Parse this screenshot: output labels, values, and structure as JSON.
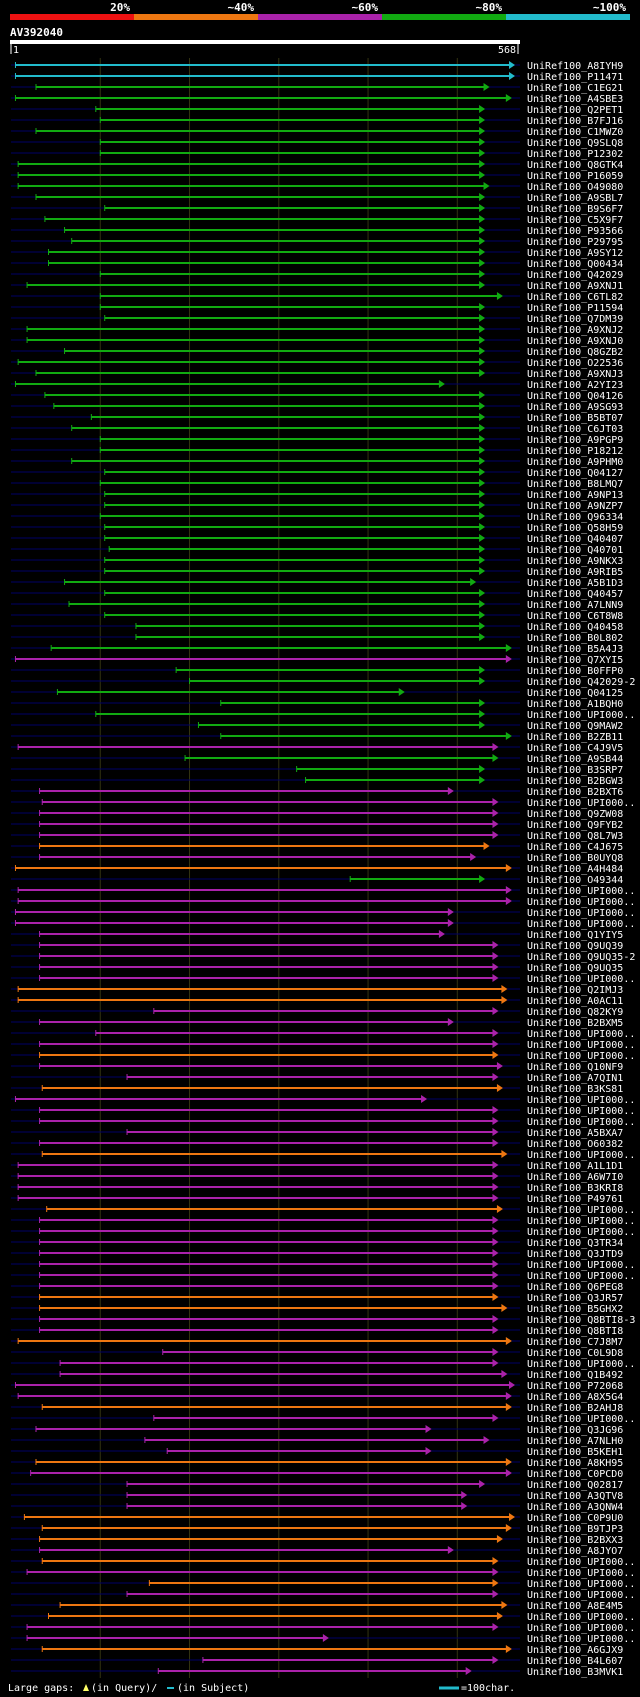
{
  "chart_data": {
    "type": "alignment-map",
    "title": "AV392040",
    "query_start": "1",
    "query_end": "568",
    "scale": {
      "labels": [
        "20%",
        "~40%",
        "~60%",
        "~80%",
        "~100%"
      ],
      "colors": [
        "#ee1111",
        "#ee7711",
        "#aa22aa",
        "#11aa11",
        "#22bbcc"
      ]
    },
    "footer": {
      "gap_label": "Large gaps:",
      "query_label": "(in Query)/",
      "subject_label": "(in Subject)",
      "scale_label": "=100char."
    },
    "hits": [
      {
        "id": "UniRef100_A8IYH9",
        "s": 5,
        "e": 565,
        "c": "#22bbcc",
        "g": []
      },
      {
        "id": "UniRef100_P11471",
        "s": 5,
        "e": 565,
        "c": "#22bbcc",
        "g": []
      },
      {
        "id": "UniRef100_C1EG21",
        "s": 28,
        "e": 535,
        "c": "#11aa11",
        "g": []
      },
      {
        "id": "UniRef100_A4SBE3",
        "s": 5,
        "e": 560,
        "c": "#11aa11",
        "g": []
      },
      {
        "id": "UniRef100_Q2PET1",
        "s": 95,
        "e": 530,
        "c": "#11aa11",
        "g": []
      },
      {
        "id": "UniRef100_B7FJ16",
        "s": 100,
        "e": 530,
        "c": "#11aa11",
        "g": []
      },
      {
        "id": "UniRef100_C1MWZ0",
        "s": 28,
        "e": 530,
        "c": "#11aa11",
        "g": []
      },
      {
        "id": "UniRef100_Q9SLQ8",
        "s": 100,
        "e": 530,
        "c": "#11aa11",
        "g": []
      },
      {
        "id": "UniRef100_P12302",
        "s": 100,
        "e": 530,
        "c": "#11aa11",
        "g": []
      },
      {
        "id": "UniRef100_Q8GTK4",
        "s": 8,
        "e": 530,
        "c": "#11aa11",
        "g": []
      },
      {
        "id": "UniRef100_P16059",
        "s": 8,
        "e": 530,
        "c": "#11aa11",
        "g": []
      },
      {
        "id": "UniRef100_O49080",
        "s": 8,
        "e": 535,
        "c": "#11aa11",
        "g": []
      },
      {
        "id": "UniRef100_A9SBL7",
        "s": 28,
        "e": 530,
        "c": "#11aa11",
        "g": []
      },
      {
        "id": "UniRef100_B9S6F7",
        "s": 105,
        "e": 530,
        "c": "#11aa11",
        "g": []
      },
      {
        "id": "UniRef100_C5X9F7",
        "s": 38,
        "e": 530,
        "c": "#11aa11",
        "g": []
      },
      {
        "id": "UniRef100_P93566",
        "s": 60,
        "e": 530,
        "c": "#11aa11",
        "g": []
      },
      {
        "id": "UniRef100_P29795",
        "s": 68,
        "e": 530,
        "c": "#11aa11",
        "g": []
      },
      {
        "id": "UniRef100_A9SY12",
        "s": 42,
        "e": 530,
        "c": "#11aa11",
        "g": []
      },
      {
        "id": "UniRef100_Q00434",
        "s": 42,
        "e": 530,
        "c": "#11aa11",
        "g": []
      },
      {
        "id": "UniRef100_Q42029",
        "s": 100,
        "e": 530,
        "c": "#11aa11",
        "g": []
      },
      {
        "id": "UniRef100_A9XNJ1",
        "s": 18,
        "e": 530,
        "c": "#11aa11",
        "g": []
      },
      {
        "id": "UniRef100_C6TL82",
        "s": 100,
        "e": 550,
        "c": "#11aa11",
        "g": []
      },
      {
        "id": "UniRef100_P11594",
        "s": 100,
        "e": 530,
        "c": "#11aa11",
        "g": []
      },
      {
        "id": "UniRef100_Q7DM39",
        "s": 105,
        "e": 530,
        "c": "#11aa11",
        "g": []
      },
      {
        "id": "UniRef100_A9XNJ2",
        "s": 18,
        "e": 530,
        "c": "#11aa11",
        "g": []
      },
      {
        "id": "UniRef100_A9XNJ0",
        "s": 18,
        "e": 530,
        "c": "#11aa11",
        "g": []
      },
      {
        "id": "UniRef100_Q8GZB2",
        "s": 60,
        "e": 530,
        "c": "#11aa11",
        "g": []
      },
      {
        "id": "UniRef100_O22536",
        "s": 8,
        "e": 530,
        "c": "#11aa11",
        "g": []
      },
      {
        "id": "UniRef100_A9XNJ3",
        "s": 28,
        "e": 530,
        "c": "#11aa11",
        "g": []
      },
      {
        "id": "UniRef100_A2YI23",
        "s": 5,
        "e": 485,
        "c": "#11aa11",
        "g": []
      },
      {
        "id": "UniRef100_Q04126",
        "s": 38,
        "e": 530,
        "c": "#11aa11",
        "g": []
      },
      {
        "id": "UniRef100_A9SG93",
        "s": 48,
        "e": 530,
        "c": "#11aa11",
        "g": []
      },
      {
        "id": "UniRef100_B5BT07",
        "s": 90,
        "e": 530,
        "c": "#11aa11",
        "g": []
      },
      {
        "id": "UniRef100_C6JT03",
        "s": 68,
        "e": 530,
        "c": "#11aa11",
        "g": []
      },
      {
        "id": "UniRef100_A9PGP9",
        "s": 100,
        "e": 530,
        "c": "#11aa11",
        "g": []
      },
      {
        "id": "UniRef100_P18212",
        "s": 100,
        "e": 530,
        "c": "#11aa11",
        "g": []
      },
      {
        "id": "UniRef100_A9PHM0",
        "s": 68,
        "e": 530,
        "c": "#11aa11",
        "g": []
      },
      {
        "id": "UniRef100_Q04127",
        "s": 105,
        "e": 530,
        "c": "#11aa11",
        "g": []
      },
      {
        "id": "UniRef100_B8LMQ7",
        "s": 100,
        "e": 530,
        "c": "#11aa11",
        "g": []
      },
      {
        "id": "UniRef100_A9NP13",
        "s": 105,
        "e": 530,
        "c": "#11aa11",
        "g": []
      },
      {
        "id": "UniRef100_A9NZP7",
        "s": 105,
        "e": 530,
        "c": "#11aa11",
        "g": []
      },
      {
        "id": "UniRef100_Q96334",
        "s": 100,
        "e": 530,
        "c": "#11aa11",
        "g": []
      },
      {
        "id": "UniRef100_Q58H59",
        "s": 105,
        "e": 530,
        "c": "#11aa11",
        "g": []
      },
      {
        "id": "UniRef100_Q40407",
        "s": 105,
        "e": 530,
        "c": "#11aa11",
        "g": []
      },
      {
        "id": "UniRef100_Q40701",
        "s": 110,
        "e": 530,
        "c": "#11aa11",
        "g": []
      },
      {
        "id": "UniRef100_A9NKX3",
        "s": 105,
        "e": 530,
        "c": "#11aa11",
        "g": []
      },
      {
        "id": "UniRef100_A9RIB5",
        "s": 105,
        "e": 530,
        "c": "#11aa11",
        "g": []
      },
      {
        "id": "UniRef100_A5B1D3",
        "s": 60,
        "e": 520,
        "c": "#11aa11",
        "g": []
      },
      {
        "id": "UniRef100_Q40457",
        "s": 105,
        "e": 530,
        "c": "#11aa11",
        "g": []
      },
      {
        "id": "UniRef100_A7LNN9",
        "s": 65,
        "e": 530,
        "c": "#11aa11",
        "g": []
      },
      {
        "id": "UniRef100_C6T8W8",
        "s": 105,
        "e": 530,
        "c": "#11aa11",
        "g": []
      },
      {
        "id": "UniRef100_Q40458",
        "s": 140,
        "e": 530,
        "c": "#11aa11",
        "g": []
      },
      {
        "id": "UniRef100_B0L802",
        "s": 140,
        "e": 530,
        "c": "#11aa11",
        "g": []
      },
      {
        "id": "UniRef100_B5A4J3",
        "s": 45,
        "e": 560,
        "c": "#11aa11",
        "g": []
      },
      {
        "id": "UniRef100_Q7XYI5",
        "s": 5,
        "e": 560,
        "c": "#aa22aa",
        "g": []
      },
      {
        "id": "UniRef100_B0FFP0",
        "s": 185,
        "e": 530,
        "c": "#11aa11",
        "g": []
      },
      {
        "id": "UniRef100_Q42029-2",
        "s": 200,
        "e": 530,
        "c": "#11aa11",
        "g": []
      },
      {
        "id": "UniRef100_Q04125",
        "s": 52,
        "e": 440,
        "c": "#11aa11",
        "g": []
      },
      {
        "id": "UniRef100_A1BQH0",
        "s": 235,
        "e": 530,
        "c": "#11aa11",
        "g": []
      },
      {
        "id": "UniRef100_UPI000..",
        "s": 95,
        "e": 530,
        "c": "#11aa11",
        "g": []
      },
      {
        "id": "UniRef100_Q9MAW2",
        "s": 210,
        "e": 530,
        "c": "#11aa11",
        "g": []
      },
      {
        "id": "UniRef100_B2ZB11",
        "s": 235,
        "e": 560,
        "c": "#11aa11",
        "g": []
      },
      {
        "id": "UniRef100_C4J9V5",
        "s": 8,
        "e": 545,
        "c": "#aa22aa",
        "g": []
      },
      {
        "id": "UniRef100_A9SB44",
        "s": 195,
        "e": 545,
        "c": "#11aa11",
        "g": []
      },
      {
        "id": "UniRef100_B3SRP7",
        "s": 320,
        "e": 530,
        "c": "#11aa11",
        "g": []
      },
      {
        "id": "UniRef100_B2BGW3",
        "s": 330,
        "e": 530,
        "c": "#11aa11",
        "g": []
      },
      {
        "id": "UniRef100_B2BXT6",
        "s": 32,
        "e": 495,
        "c": "#aa22aa",
        "g": []
      },
      {
        "id": "UniRef100_UPI000..",
        "s": 35,
        "e": 545,
        "c": "#aa22aa",
        "g": []
      },
      {
        "id": "UniRef100_Q9ZW08",
        "s": 32,
        "e": 545,
        "c": "#aa22aa",
        "g": []
      },
      {
        "id": "UniRef100_Q9FYB2",
        "s": 32,
        "e": 545,
        "c": "#aa22aa",
        "g": []
      },
      {
        "id": "UniRef100_Q8L7W3",
        "s": 32,
        "e": 545,
        "c": "#aa22aa",
        "g": []
      },
      {
        "id": "UniRef100_C4J675",
        "s": 32,
        "e": 535,
        "c": "#ee7711",
        "g": []
      },
      {
        "id": "UniRef100_B0UYQ8",
        "s": 32,
        "e": 520,
        "c": "#aa22aa",
        "g": []
      },
      {
        "id": "UniRef100_A4H484",
        "s": 5,
        "e": 560,
        "c": "#ee7711",
        "g": []
      },
      {
        "id": "UniRef100_O49344",
        "s": 380,
        "e": 530,
        "c": "#11aa11",
        "g": []
      },
      {
        "id": "UniRef100_UPI000..",
        "s": 8,
        "e": 560,
        "c": "#aa22aa",
        "g": []
      },
      {
        "id": "UniRef100_UPI000..",
        "s": 8,
        "e": 560,
        "c": "#aa22aa",
        "g": []
      },
      {
        "id": "UniRef100_UPI000..",
        "s": 5,
        "e": 495,
        "c": "#aa22aa",
        "g": []
      },
      {
        "id": "UniRef100_UPI000..",
        "s": 5,
        "e": 495,
        "c": "#aa22aa",
        "g": []
      },
      {
        "id": "UniRef100_Q1YIY5",
        "s": 32,
        "e": 485,
        "c": "#aa22aa",
        "g": []
      },
      {
        "id": "UniRef100_Q9UQ39",
        "s": 32,
        "e": 545,
        "c": "#aa22aa",
        "g": []
      },
      {
        "id": "UniRef100_Q9UQ35-2",
        "s": 32,
        "e": 545,
        "c": "#aa22aa",
        "g": []
      },
      {
        "id": "UniRef100_Q9UQ35",
        "s": 32,
        "e": 545,
        "c": "#aa22aa",
        "g": []
      },
      {
        "id": "UniRef100_UPI000..",
        "s": 32,
        "e": 545,
        "c": "#aa22aa",
        "g": []
      },
      {
        "id": "UniRef100_Q2IMJ3",
        "s": 8,
        "e": 555,
        "c": "#ee7711",
        "g": []
      },
      {
        "id": "UniRef100_A0AC11",
        "s": 8,
        "e": 555,
        "c": "#ee7711",
        "g": []
      },
      {
        "id": "UniRef100_Q82KY9",
        "s": 160,
        "e": 545,
        "c": "#aa22aa",
        "g": []
      },
      {
        "id": "UniRef100_B2BXM5",
        "s": 32,
        "e": 495,
        "c": "#aa22aa",
        "g": []
      },
      {
        "id": "UniRef100_UPI000..",
        "s": 95,
        "e": 545,
        "c": "#aa22aa",
        "g": []
      },
      {
        "id": "UniRef100_UPI000..",
        "s": 32,
        "e": 545,
        "c": "#aa22aa",
        "g": []
      },
      {
        "id": "UniRef100_UPI000..",
        "s": 32,
        "e": 545,
        "c": "#ee7711",
        "g": []
      },
      {
        "id": "UniRef100_Q10NF9",
        "s": 32,
        "e": 550,
        "c": "#aa22aa",
        "g": []
      },
      {
        "id": "UniRef100_A7QIN1",
        "s": 130,
        "e": 545,
        "c": "#aa22aa",
        "g": []
      },
      {
        "id": "UniRef100_B3KS81",
        "s": 35,
        "e": 550,
        "c": "#ee7711",
        "g": []
      },
      {
        "id": "UniRef100_UPI000..",
        "s": 5,
        "e": 465,
        "c": "#aa22aa",
        "g": []
      },
      {
        "id": "UniRef100_UPI000..",
        "s": 32,
        "e": 545,
        "c": "#aa22aa",
        "g": []
      },
      {
        "id": "UniRef100_UPI000..",
        "s": 32,
        "e": 545,
        "c": "#aa22aa",
        "g": []
      },
      {
        "id": "UniRef100_A5BXA7",
        "s": 130,
        "e": 545,
        "c": "#aa22aa",
        "g": []
      },
      {
        "id": "UniRef100_O60382",
        "s": 32,
        "e": 545,
        "c": "#aa22aa",
        "g": []
      },
      {
        "id": "UniRef100_UPI000..",
        "s": 35,
        "e": 555,
        "c": "#ee7711",
        "g": []
      },
      {
        "id": "UniRef100_A1L1D1",
        "s": 8,
        "e": 545,
        "c": "#aa22aa",
        "g": []
      },
      {
        "id": "UniRef100_A6W7I0",
        "s": 8,
        "e": 545,
        "c": "#aa22aa",
        "g": []
      },
      {
        "id": "UniRef100_B3KRI8",
        "s": 8,
        "e": 545,
        "c": "#aa22aa",
        "g": []
      },
      {
        "id": "UniRef100_P49761",
        "s": 8,
        "e": 545,
        "c": "#aa22aa",
        "g": []
      },
      {
        "id": "UniRef100_UPI000..",
        "s": 40,
        "e": 550,
        "c": "#ee7711",
        "g": []
      },
      {
        "id": "UniRef100_UPI000..",
        "s": 32,
        "e": 545,
        "c": "#aa22aa",
        "g": []
      },
      {
        "id": "UniRef100_UPI000..",
        "s": 32,
        "e": 545,
        "c": "#aa22aa",
        "g": []
      },
      {
        "id": "UniRef100_Q3TR34",
        "s": 32,
        "e": 545,
        "c": "#aa22aa",
        "g": []
      },
      {
        "id": "UniRef100_Q3JTD9",
        "s": 32,
        "e": 545,
        "c": "#aa22aa",
        "g": []
      },
      {
        "id": "UniRef100_UPI000..",
        "s": 32,
        "e": 545,
        "c": "#aa22aa",
        "g": []
      },
      {
        "id": "UniRef100_UPI000..",
        "s": 32,
        "e": 545,
        "c": "#aa22aa",
        "g": []
      },
      {
        "id": "UniRef100_Q6PEG8",
        "s": 32,
        "e": 545,
        "c": "#aa22aa",
        "g": []
      },
      {
        "id": "UniRef100_Q3JR57",
        "s": 32,
        "e": 545,
        "c": "#ee7711",
        "g": []
      },
      {
        "id": "UniRef100_B5GHX2",
        "s": 32,
        "e": 555,
        "c": "#ee7711",
        "g": []
      },
      {
        "id": "UniRef100_Q8BTI8-3",
        "s": 32,
        "e": 545,
        "c": "#aa22aa",
        "g": []
      },
      {
        "id": "UniRef100_Q8BTI8",
        "s": 32,
        "e": 545,
        "c": "#aa22aa",
        "g": []
      },
      {
        "id": "UniRef100_C7J8M7",
        "s": 8,
        "e": 560,
        "c": "#ee7711",
        "g": []
      },
      {
        "id": "UniRef100_C0L9D8",
        "s": 170,
        "e": 545,
        "c": "#aa22aa",
        "g": []
      },
      {
        "id": "UniRef100_UPI000..",
        "s": 55,
        "e": 545,
        "c": "#aa22aa",
        "g": []
      },
      {
        "id": "UniRef100_Q1B492",
        "s": 55,
        "e": 555,
        "c": "#aa22aa",
        "g": []
      },
      {
        "id": "UniRef100_P72068",
        "s": 5,
        "e": 570,
        "c": "#aa22aa",
        "g": []
      },
      {
        "id": "UniRef100_A8X5G4",
        "s": 8,
        "e": 560,
        "c": "#aa22aa",
        "g": []
      },
      {
        "id": "UniRef100_B2AHJ8",
        "s": 35,
        "e": 560,
        "c": "#ee7711",
        "g": []
      },
      {
        "id": "UniRef100_UPI000..",
        "s": 160,
        "e": 545,
        "c": "#aa22aa",
        "g": []
      },
      {
        "id": "UniRef100_Q3JG96",
        "s": 28,
        "e": 470,
        "c": "#aa22aa",
        "g": []
      },
      {
        "id": "UniRef100_A7NLH0",
        "s": 150,
        "e": 535,
        "c": "#aa22aa",
        "g": []
      },
      {
        "id": "UniRef100_B5KEH1",
        "s": 175,
        "e": 470,
        "c": "#aa22aa",
        "g": []
      },
      {
        "id": "UniRef100_A8KH95",
        "s": 28,
        "e": 560,
        "c": "#ee7711",
        "g": []
      },
      {
        "id": "UniRef100_C0PCD0",
        "s": 22,
        "e": 560,
        "c": "#aa22aa",
        "g": []
      },
      {
        "id": "UniRef100_Q02817",
        "s": 130,
        "e": 530,
        "c": "#aa22aa",
        "g": []
      },
      {
        "id": "UniRef100_A3QTV8",
        "s": 130,
        "e": 510,
        "c": "#aa22aa",
        "g": []
      },
      {
        "id": "UniRef100_A3QNW4",
        "s": 130,
        "e": 510,
        "c": "#aa22aa",
        "g": []
      },
      {
        "id": "UniRef100_C0P9U0",
        "s": 15,
        "e": 565,
        "c": "#ee7711",
        "g": []
      },
      {
        "id": "UniRef100_B9TJP3",
        "s": 35,
        "e": 560,
        "c": "#ee7711",
        "g": []
      },
      {
        "id": "UniRef100_B2BXX3",
        "s": 32,
        "e": 550,
        "c": "#ee7711",
        "g": []
      },
      {
        "id": "UniRef100_A8JYO7",
        "s": 32,
        "e": 495,
        "c": "#aa22aa",
        "g": []
      },
      {
        "id": "UniRef100_UPI000..",
        "s": 35,
        "e": 545,
        "c": "#ee7711",
        "g": []
      },
      {
        "id": "UniRef100_UPI000..",
        "s": 18,
        "e": 545,
        "c": "#aa22aa",
        "g": []
      },
      {
        "id": "UniRef100_UPI000..",
        "s": 155,
        "e": 545,
        "c": "#ee7711",
        "g": []
      },
      {
        "id": "UniRef100_UPI000..",
        "s": 130,
        "e": 545,
        "c": "#aa22aa",
        "g": []
      },
      {
        "id": "UniRef100_A8E4M5",
        "s": 55,
        "e": 555,
        "c": "#ee7711",
        "g": []
      },
      {
        "id": "UniRef100_UPI000..",
        "s": 42,
        "e": 550,
        "c": "#ee7711",
        "g": []
      },
      {
        "id": "UniRef100_UPI000..",
        "s": 18,
        "e": 545,
        "c": "#aa22aa",
        "g": []
      },
      {
        "id": "UniRef100_UPI000..",
        "s": 18,
        "e": 355,
        "c": "#aa22aa",
        "g": []
      },
      {
        "id": "UniRef100_A6GJX9",
        "s": 35,
        "e": 560,
        "c": "#ee7711",
        "g": []
      },
      {
        "id": "UniRef100_B4L607",
        "s": 215,
        "e": 545,
        "c": "#aa22aa",
        "g": []
      },
      {
        "id": "UniRef100_B3MVK1",
        "s": 165,
        "e": 515,
        "c": "#aa22aa",
        "g": []
      }
    ]
  }
}
